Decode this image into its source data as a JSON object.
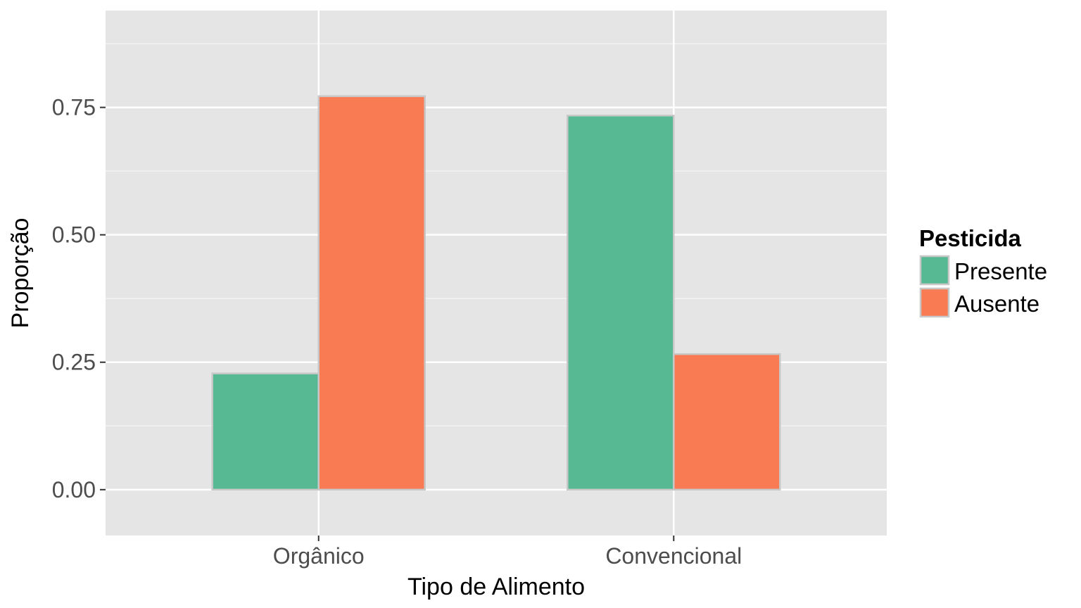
{
  "chart_data": {
    "type": "bar",
    "categories": [
      "Orgânico",
      "Convencional"
    ],
    "series": [
      {
        "name": "Presente",
        "values": [
          0.228,
          0.734
        ],
        "color": "#57b994"
      },
      {
        "name": "Ausente",
        "values": [
          0.772,
          0.266
        ],
        "color": "#f97b53"
      }
    ],
    "title": "",
    "xlabel": "Tipo de Alimento",
    "ylabel": "Proporção",
    "ylim": [
      -0.09,
      0.94
    ],
    "yticks": [
      0,
      0.25,
      0.5,
      0.75
    ],
    "ytick_labels": [
      "0.00",
      "0.25",
      "0.50",
      "0.75"
    ],
    "grid": true,
    "legend": {
      "title": "Pesticida",
      "position": "right"
    },
    "panel_color": "#e5e5e5",
    "bar_outline_color": "#c8c8c8"
  }
}
